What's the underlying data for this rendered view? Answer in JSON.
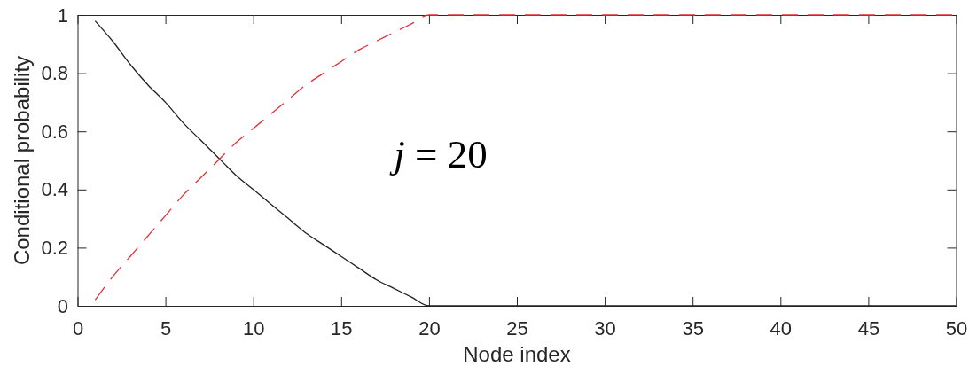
{
  "chart_data": {
    "type": "line",
    "xlabel": "Node index",
    "ylabel": "Conditional probability",
    "annotations": [
      "j = 20"
    ],
    "x": [
      1,
      2,
      3,
      4,
      5,
      6,
      7,
      8,
      9,
      10,
      11,
      12,
      13,
      14,
      15,
      16,
      17,
      18,
      19,
      20,
      21,
      22,
      23,
      24,
      25,
      26,
      27,
      28,
      29,
      30,
      31,
      32,
      33,
      34,
      35,
      36,
      37,
      38,
      39,
      40,
      41,
      42,
      43,
      44,
      45,
      46,
      47,
      48,
      49,
      50
    ],
    "series": [
      {
        "color": "#222222",
        "line_style": "solid",
        "values": [
          0.98,
          0.91,
          0.83,
          0.76,
          0.7,
          0.63,
          0.57,
          0.51,
          0.45,
          0.4,
          0.35,
          0.3,
          0.25,
          0.21,
          0.17,
          0.13,
          0.09,
          0.06,
          0.03,
          0,
          0,
          0,
          0,
          0,
          0,
          0,
          0,
          0,
          0,
          0,
          0,
          0,
          0,
          0,
          0,
          0,
          0,
          0,
          0,
          0,
          0,
          0,
          0,
          0,
          0,
          0,
          0,
          0,
          0,
          0
        ]
      },
      {
        "color": "#e0303c",
        "line_style": "dashed",
        "values": [
          0.02,
          0.1,
          0.17,
          0.24,
          0.31,
          0.38,
          0.44,
          0.5,
          0.56,
          0.61,
          0.66,
          0.71,
          0.76,
          0.8,
          0.84,
          0.88,
          0.91,
          0.94,
          0.97,
          1,
          1,
          1,
          1,
          1,
          1,
          1,
          1,
          1,
          1,
          1,
          1,
          1,
          1,
          1,
          1,
          1,
          1,
          1,
          1,
          1,
          1,
          1,
          1,
          1,
          1,
          1,
          1,
          1,
          1,
          1
        ]
      }
    ],
    "xlim": [
      0,
      50
    ],
    "ylim": [
      0,
      1
    ],
    "xticks": [
      0,
      5,
      10,
      15,
      20,
      25,
      30,
      35,
      40,
      45,
      50
    ],
    "yticks": [
      0,
      0.2,
      0.4,
      0.6,
      0.8,
      1
    ]
  }
}
